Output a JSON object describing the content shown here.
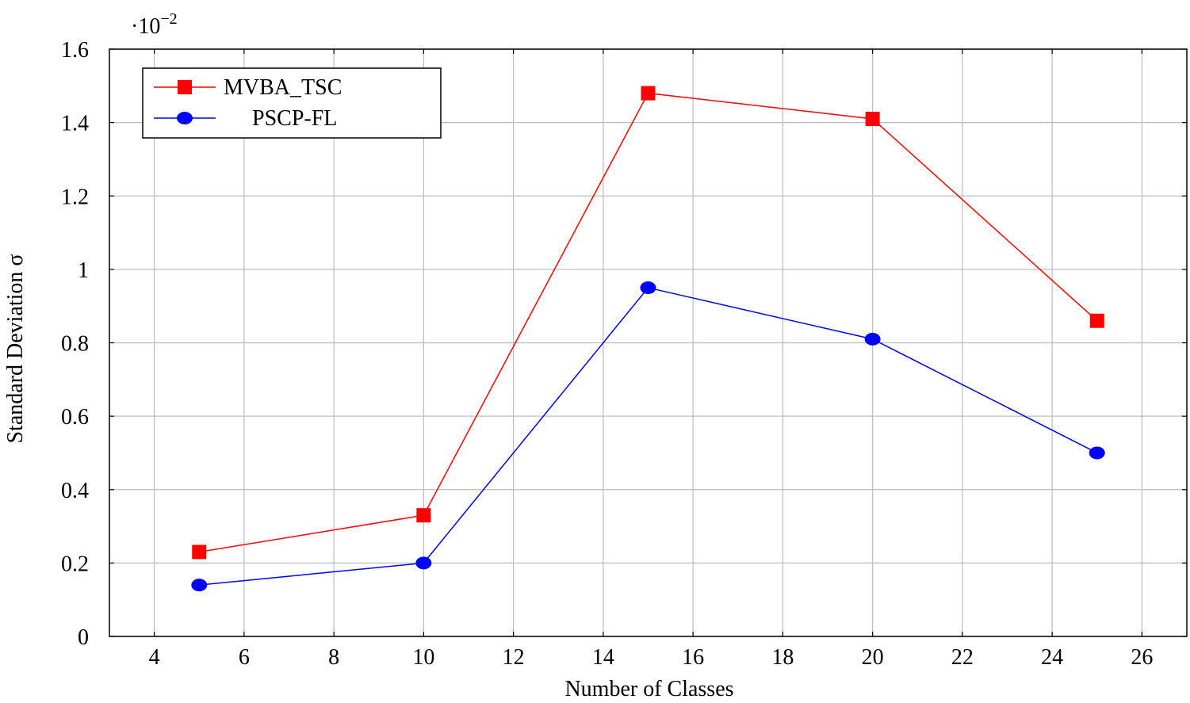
{
  "chart_data": {
    "type": "line",
    "title": "",
    "xlabel": "Number of Classes",
    "ylabel": "Standard Deviation σ",
    "y_multiplier_label": "·10",
    "y_multiplier_exponent": "−2",
    "xlim": [
      3,
      27
    ],
    "ylim": [
      0,
      1.6
    ],
    "xticks": [
      4,
      6,
      8,
      10,
      12,
      14,
      16,
      18,
      20,
      22,
      24,
      26
    ],
    "yticks": [
      0,
      0.2,
      0.4,
      0.6,
      0.8,
      1.0,
      1.2,
      1.4,
      1.6
    ],
    "ytick_labels": [
      "0",
      "0.2",
      "0.4",
      "0.6",
      "0.8",
      "1",
      "1.2",
      "1.4",
      "1.6"
    ],
    "grid": true,
    "legend_position": "top-left",
    "x": [
      5,
      10,
      15,
      20,
      25
    ],
    "series": [
      {
        "name": "MVBA_TSC",
        "color": "#ff0000",
        "marker": "square",
        "values": [
          0.23,
          0.33,
          1.48,
          1.41,
          0.86
        ]
      },
      {
        "name": "PSCP-FL",
        "color": "#0000ff",
        "marker": "circle",
        "values": [
          0.14,
          0.2,
          0.95,
          0.81,
          0.5
        ]
      }
    ]
  }
}
